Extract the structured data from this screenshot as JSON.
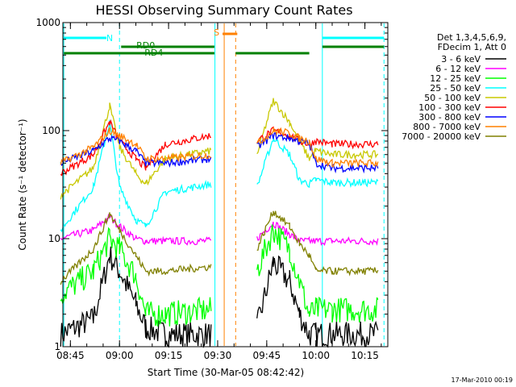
{
  "chart_data": {
    "type": "line",
    "title": "HESSI Observing Summary Count Rates",
    "xlabel": "Start Time (30-Mar-05 08:42:42)",
    "ylabel": "Count Rate (s⁻¹ detector⁻¹)",
    "x_ticks": [
      "08:45",
      "09:00",
      "09:15",
      "09:30",
      "09:45",
      "10:00",
      "10:15"
    ],
    "y_ticks": [
      "1",
      "10",
      "100",
      "1000"
    ],
    "xlim": [
      "08:42:42",
      "10:22:00"
    ],
    "ylim": [
      1,
      1000
    ],
    "y_scale": "log",
    "grid": false,
    "legend_position": "right",
    "legend_header": [
      "Det 1,3,4,5,6,9,",
      "FDecim 1, Att 0"
    ],
    "footer": "17-Mar-2010 00:19",
    "annotations": [
      {
        "label": "N",
        "color": "#00ffff"
      },
      {
        "label": "RD0",
        "color": "#008000"
      },
      {
        "label": "RD4",
        "color": "#008000"
      },
      {
        "label": "S",
        "color": "#ff8000"
      }
    ],
    "time_keys": [
      "08:42",
      "08:52",
      "08:57",
      "09:00",
      "09:05",
      "09:08",
      "09:14",
      "09:28",
      "09:31",
      "09:33",
      "09:42",
      "09:47",
      "09:52",
      "09:55",
      "09:58",
      "10:00",
      "10:05",
      "10:19"
    ],
    "series": [
      {
        "name": "3 - 6 keV",
        "color": "#000000",
        "values": [
          1.3,
          1.8,
          7,
          5,
          2.5,
          1.5,
          1.3,
          1.3,
          null,
          null,
          1.5,
          6,
          4,
          2,
          1.3,
          1.3,
          1.3,
          1.3
        ]
      },
      {
        "name": "6 - 12 keV",
        "color": "#ff00ff",
        "values": [
          10,
          12,
          16,
          13,
          10,
          9.5,
          9.5,
          9.5,
          null,
          null,
          10,
          14,
          11,
          9.5,
          9.5,
          9.5,
          9.5,
          9.5
        ]
      },
      {
        "name": "12 - 25 keV",
        "color": "#00ff00",
        "values": [
          3,
          5,
          10,
          8,
          4.5,
          2,
          2,
          2.2,
          null,
          null,
          5,
          12,
          8,
          4,
          2,
          2.2,
          2.2,
          2.2
        ]
      },
      {
        "name": "25 - 50 keV",
        "color": "#00ffff",
        "values": [
          12,
          30,
          120,
          30,
          15,
          13,
          27,
          32,
          null,
          null,
          30,
          85,
          60,
          35,
          32,
          35,
          33,
          33
        ]
      },
      {
        "name": "50 - 100 keV",
        "color": "#c8c800",
        "values": [
          25,
          45,
          170,
          70,
          40,
          32,
          55,
          65,
          null,
          null,
          60,
          190,
          120,
          80,
          55,
          65,
          60,
          60
        ]
      },
      {
        "name": "100 - 300 keV",
        "color": "#ff0000",
        "values": [
          40,
          60,
          120,
          80,
          55,
          45,
          75,
          90,
          null,
          null,
          80,
          100,
          90,
          80,
          75,
          80,
          75,
          75
        ]
      },
      {
        "name": "300 - 800 keV",
        "color": "#0000ff",
        "values": [
          50,
          65,
          85,
          80,
          65,
          50,
          50,
          55,
          null,
          null,
          70,
          90,
          85,
          80,
          75,
          50,
          45,
          45
        ]
      },
      {
        "name": "800 - 7000 keV",
        "color": "#ff8000",
        "values": [
          50,
          70,
          100,
          90,
          75,
          55,
          55,
          60,
          null,
          null,
          75,
          100,
          95,
          85,
          80,
          55,
          50,
          50
        ]
      },
      {
        "name": "7000 - 20000 keV",
        "color": "#808000",
        "values": [
          4,
          8,
          17,
          12,
          7,
          5,
          5,
          5.5,
          null,
          null,
          8,
          18,
          13,
          9,
          7,
          5,
          5,
          5
        ]
      }
    ]
  }
}
